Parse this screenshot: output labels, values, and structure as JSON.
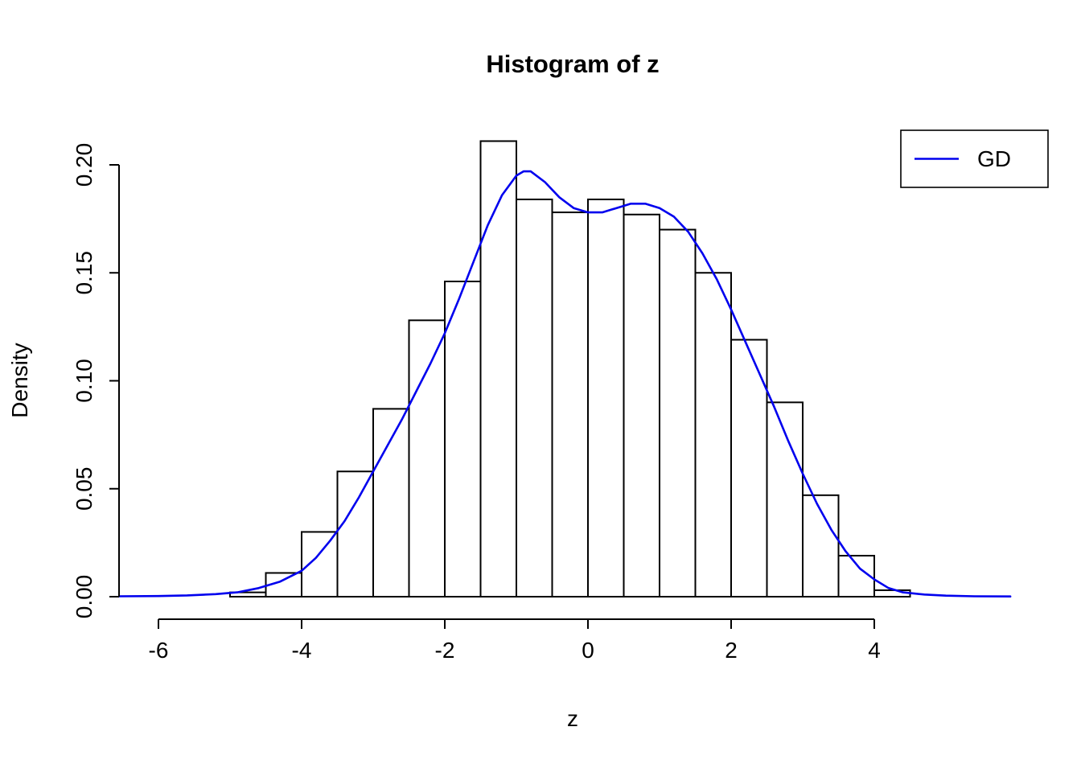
{
  "chart_data": {
    "type": "bar",
    "subtype": "histogram-with-density-overlay",
    "title": "Histogram of z",
    "xlabel": "z",
    "ylabel": "Density",
    "xlim": [
      -6.55,
      5.9
    ],
    "ylim": [
      0,
      0.2185
    ],
    "grid": false,
    "background": "#ffffff",
    "x_ticks": [
      -6,
      -4,
      -2,
      0,
      2,
      4
    ],
    "x_tick_labels": [
      "-6",
      "-4",
      "-2",
      "0",
      "2",
      "4"
    ],
    "y_ticks": [
      0,
      0.05,
      0.1,
      0.15,
      0.2
    ],
    "y_tick_labels": [
      "0.00",
      "0.05",
      "0.10",
      "0.15",
      "0.20"
    ],
    "histogram": {
      "bin_start": -5.0,
      "bin_width": 0.5,
      "bin_edges": [
        -5.0,
        -4.5,
        -4.0,
        -3.5,
        -3.0,
        -2.5,
        -2.0,
        -1.5,
        -1.0,
        -0.5,
        0.0,
        0.5,
        1.0,
        1.5,
        2.0,
        2.5,
        3.0,
        3.5,
        4.0,
        4.5
      ],
      "densities": [
        0.002,
        0.011,
        0.03,
        0.058,
        0.087,
        0.128,
        0.146,
        0.211,
        0.184,
        0.178,
        0.184,
        0.177,
        0.17,
        0.15,
        0.119,
        0.09,
        0.047,
        0.019,
        0.003
      ],
      "bar_fill": "#ffffff",
      "bar_stroke": "#000000"
    },
    "density_curve": {
      "name": "GD",
      "color": "#0000EE",
      "points": [
        [
          -6.55,
          0.0002
        ],
        [
          -6.0,
          0.0003
        ],
        [
          -5.6,
          0.0006
        ],
        [
          -5.2,
          0.0012
        ],
        [
          -4.9,
          0.002
        ],
        [
          -4.6,
          0.004
        ],
        [
          -4.3,
          0.007
        ],
        [
          -4.0,
          0.012
        ],
        [
          -3.8,
          0.018
        ],
        [
          -3.6,
          0.026
        ],
        [
          -3.4,
          0.035
        ],
        [
          -3.2,
          0.046
        ],
        [
          -3.0,
          0.058
        ],
        [
          -2.8,
          0.07
        ],
        [
          -2.6,
          0.082
        ],
        [
          -2.4,
          0.095
        ],
        [
          -2.2,
          0.108
        ],
        [
          -2.0,
          0.122
        ],
        [
          -1.8,
          0.138
        ],
        [
          -1.6,
          0.155
        ],
        [
          -1.4,
          0.172
        ],
        [
          -1.2,
          0.186
        ],
        [
          -1.0,
          0.195
        ],
        [
          -0.9,
          0.197
        ],
        [
          -0.8,
          0.197
        ],
        [
          -0.6,
          0.192
        ],
        [
          -0.4,
          0.185
        ],
        [
          -0.2,
          0.18
        ],
        [
          0.0,
          0.178
        ],
        [
          0.2,
          0.178
        ],
        [
          0.4,
          0.18
        ],
        [
          0.6,
          0.182
        ],
        [
          0.8,
          0.182
        ],
        [
          1.0,
          0.18
        ],
        [
          1.2,
          0.176
        ],
        [
          1.4,
          0.169
        ],
        [
          1.6,
          0.159
        ],
        [
          1.8,
          0.147
        ],
        [
          2.0,
          0.133
        ],
        [
          2.2,
          0.118
        ],
        [
          2.4,
          0.103
        ],
        [
          2.6,
          0.088
        ],
        [
          2.8,
          0.072
        ],
        [
          3.0,
          0.057
        ],
        [
          3.2,
          0.043
        ],
        [
          3.4,
          0.031
        ],
        [
          3.6,
          0.021
        ],
        [
          3.8,
          0.013
        ],
        [
          4.0,
          0.008
        ],
        [
          4.2,
          0.004
        ],
        [
          4.4,
          0.002
        ],
        [
          4.7,
          0.001
        ],
        [
          5.0,
          0.0005
        ],
        [
          5.4,
          0.0002
        ],
        [
          5.9,
          0.0001
        ]
      ]
    },
    "legend": {
      "position": "top-right",
      "entries": [
        {
          "label": "GD",
          "color": "#0000EE",
          "marker": "line"
        }
      ]
    }
  }
}
